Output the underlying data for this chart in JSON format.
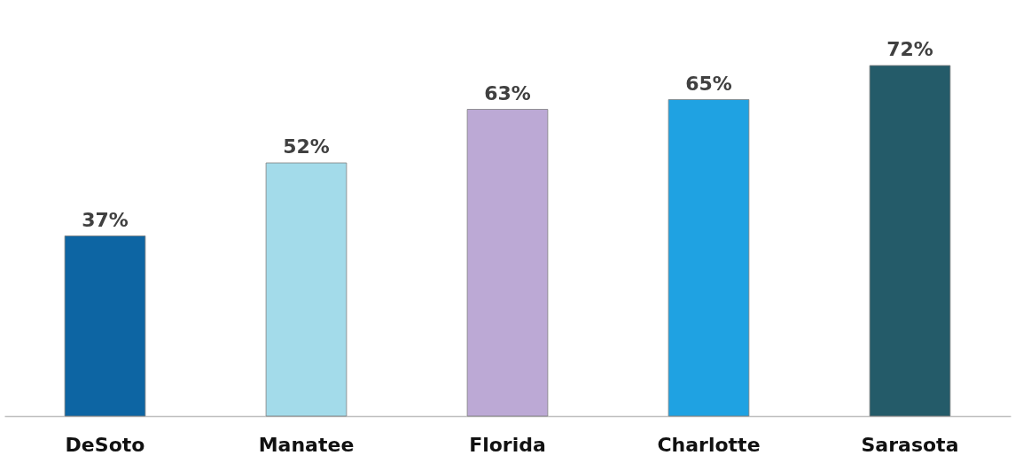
{
  "chart_data": {
    "type": "bar",
    "categories": [
      "DeSoto",
      "Manatee",
      "Florida",
      "Charlotte",
      "Sarasota"
    ],
    "values": [
      37,
      52,
      63,
      65,
      72
    ],
    "colors": [
      "#0d65a3",
      "#a3dbea",
      "#bca9d5",
      "#1fa2e2",
      "#245b69"
    ],
    "value_labels": [
      "37%",
      "52%",
      "63%",
      "65%",
      "72%"
    ]
  }
}
